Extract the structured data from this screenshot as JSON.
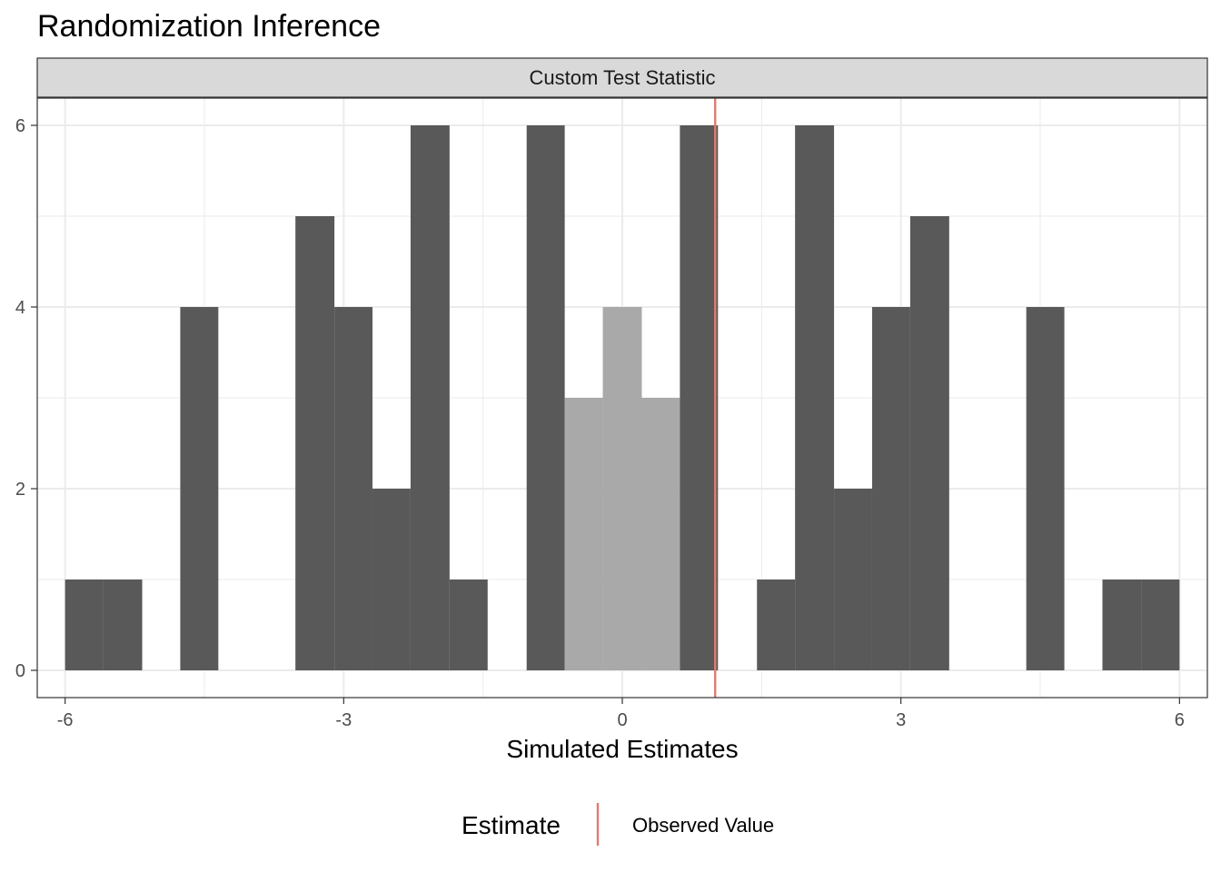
{
  "chart_data": {
    "type": "histogram",
    "title": "Randomization Inference",
    "facet_label": "Custom Test Statistic",
    "xlabel": "Simulated Estimates",
    "ylabel": "",
    "xlim": [
      -6.3,
      6.3
    ],
    "ylim": [
      -0.3,
      6.3
    ],
    "x_ticks": [
      -6,
      -3,
      0,
      3,
      6
    ],
    "x_tick_labels": [
      "-6",
      "-3",
      "0",
      "3",
      "6"
    ],
    "y_ticks": [
      0,
      2,
      4,
      6
    ],
    "y_tick_labels": [
      "0",
      "2",
      "4",
      "6"
    ],
    "bins": [
      {
        "x0": -6.0,
        "x1": -5.59,
        "count": 1,
        "group": "extreme"
      },
      {
        "x0": -5.59,
        "x1": -5.17,
        "count": 1,
        "group": "extreme"
      },
      {
        "x0": -4.76,
        "x1": -4.35,
        "count": 4,
        "group": "extreme"
      },
      {
        "x0": -3.52,
        "x1": -3.1,
        "count": 5,
        "group": "extreme"
      },
      {
        "x0": -3.1,
        "x1": -2.69,
        "count": 4,
        "group": "extreme"
      },
      {
        "x0": -2.69,
        "x1": -2.28,
        "count": 2,
        "group": "extreme"
      },
      {
        "x0": -2.28,
        "x1": -1.86,
        "count": 6,
        "group": "extreme"
      },
      {
        "x0": -1.86,
        "x1": -1.45,
        "count": 1,
        "group": "extreme"
      },
      {
        "x0": -1.03,
        "x1": -0.62,
        "count": 6,
        "group": "extreme"
      },
      {
        "x0": -0.62,
        "x1": -0.21,
        "count": 3,
        "group": "not_extreme"
      },
      {
        "x0": -0.21,
        "x1": 0.21,
        "count": 4,
        "group": "not_extreme"
      },
      {
        "x0": 0.21,
        "x1": 0.62,
        "count": 3,
        "group": "not_extreme"
      },
      {
        "x0": 0.62,
        "x1": 1.03,
        "count": 6,
        "group": "extreme"
      },
      {
        "x0": 1.45,
        "x1": 1.86,
        "count": 1,
        "group": "extreme"
      },
      {
        "x0": 1.86,
        "x1": 2.28,
        "count": 6,
        "group": "extreme"
      },
      {
        "x0": 2.28,
        "x1": 2.69,
        "count": 2,
        "group": "extreme"
      },
      {
        "x0": 2.69,
        "x1": 3.1,
        "count": 4,
        "group": "extreme"
      },
      {
        "x0": 3.1,
        "x1": 3.52,
        "count": 5,
        "group": "extreme"
      },
      {
        "x0": 4.35,
        "x1": 4.76,
        "count": 4,
        "group": "extreme"
      },
      {
        "x0": 5.17,
        "x1": 5.59,
        "count": 1,
        "group": "extreme"
      },
      {
        "x0": 5.59,
        "x1": 6.0,
        "count": 1,
        "group": "extreme"
      }
    ],
    "observed_value": 1.0,
    "legend": {
      "title": "Estimate",
      "entries": [
        {
          "label": "Observed Value",
          "color": "#e07b6e"
        }
      ],
      "position": "bottom"
    },
    "colors": {
      "extreme": "#595959",
      "not_extreme": "#a9a9a9",
      "observed": "#e07b6e",
      "strip_bg": "#d9d9d9",
      "grid": "#ebebeb",
      "panel_border": "#333333"
    }
  }
}
